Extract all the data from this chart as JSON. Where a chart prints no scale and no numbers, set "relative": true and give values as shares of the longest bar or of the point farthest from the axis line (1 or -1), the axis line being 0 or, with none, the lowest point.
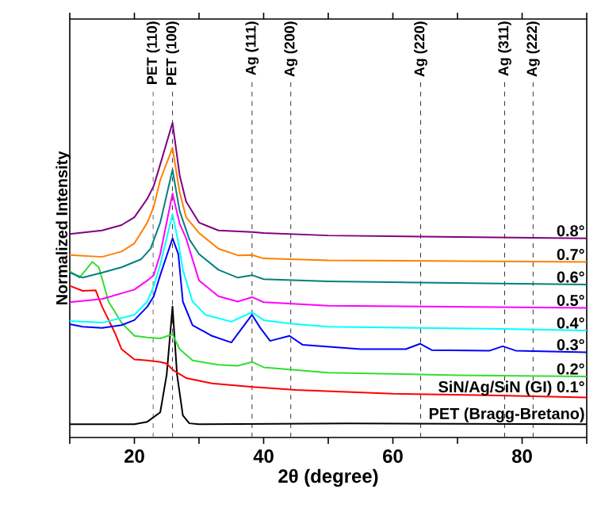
{
  "chart_data": {
    "type": "line",
    "relative": true,
    "xlabel": "2θ (degree)",
    "ylabel": "Normalized Intensity",
    "xlim": [
      10,
      90
    ],
    "xticks": [
      {
        "value": 10,
        "label": null
      },
      20,
      {
        "value": 30,
        "label": null
      },
      40,
      {
        "value": 50,
        "label": null
      },
      60,
      {
        "value": 70,
        "label": null
      },
      80,
      {
        "value": 90,
        "label": null
      }
    ],
    "series": [
      {
        "name": "PET (Bragg-Bretano)",
        "color": "#000000",
        "x": [
          10,
          20,
          22,
          23,
          24,
          25,
          25.9,
          26.6,
          27.5,
          28.5,
          30,
          53,
          90
        ],
        "values": [
          0.042,
          0.042,
          0.05,
          0.065,
          0.08,
          0.2,
          0.416,
          0.2,
          0.07,
          0.045,
          0.042,
          0.045,
          0.042
        ]
      },
      {
        "name": "SiN/Ag/SiN (GI) 0.1°",
        "color": "#ff0000",
        "x": [
          10,
          12,
          14,
          15,
          17,
          18,
          20,
          22,
          24,
          25,
          26,
          28,
          32,
          38,
          45,
          60,
          75,
          90
        ],
        "values": [
          0.482,
          0.466,
          0.468,
          0.416,
          0.332,
          0.281,
          0.248,
          0.245,
          0.24,
          0.235,
          0.214,
          0.189,
          0.172,
          0.161,
          0.151,
          0.139,
          0.134,
          0.127
        ]
      },
      {
        "name": "0.2°",
        "color": "#33dd33",
        "x": [
          10,
          11.5,
          12.5,
          13.5,
          14.5,
          16,
          18,
          20,
          22,
          24,
          25.9,
          27,
          29,
          33,
          36,
          38.2,
          40,
          50,
          70,
          90
        ],
        "values": [
          0.529,
          0.508,
          0.533,
          0.558,
          0.541,
          0.432,
          0.365,
          0.323,
          0.318,
          0.315,
          0.328,
          0.281,
          0.245,
          0.231,
          0.228,
          0.24,
          0.223,
          0.206,
          0.198,
          0.194
        ]
      },
      {
        "name": "0.3°",
        "color": "#0000ff",
        "x": [
          10,
          12,
          15,
          18,
          20,
          22,
          23,
          24,
          25.9,
          26.8,
          27.5,
          29,
          32,
          35,
          38.2,
          39.5,
          41,
          44,
          46,
          55,
          62,
          64.2,
          66,
          75,
          77,
          79,
          90
        ],
        "values": [
          0.36,
          0.352,
          0.348,
          0.357,
          0.373,
          0.416,
          0.449,
          0.516,
          0.633,
          0.583,
          0.432,
          0.357,
          0.323,
          0.302,
          0.39,
          0.348,
          0.307,
          0.323,
          0.295,
          0.281,
          0.281,
          0.298,
          0.278,
          0.276,
          0.29,
          0.276,
          0.271
        ]
      },
      {
        "name": "0.4°",
        "color": "#00ffff",
        "x": [
          10,
          15,
          20,
          22,
          23,
          24,
          25.9,
          26.8,
          27.5,
          29,
          31,
          35,
          38.2,
          40,
          44,
          50,
          77,
          90
        ],
        "values": [
          0.37,
          0.365,
          0.39,
          0.432,
          0.482,
          0.549,
          0.71,
          0.62,
          0.533,
          0.432,
          0.39,
          0.368,
          0.398,
          0.373,
          0.362,
          0.352,
          0.345,
          0.34
        ]
      },
      {
        "name": "0.5°",
        "color": "#ff00ff",
        "x": [
          10,
          15,
          20,
          22,
          23,
          24,
          25.9,
          27,
          28,
          30,
          33,
          36,
          38.2,
          40,
          50,
          90
        ],
        "values": [
          0.43,
          0.44,
          0.47,
          0.499,
          0.516,
          0.583,
          0.775,
          0.68,
          0.633,
          0.499,
          0.449,
          0.432,
          0.446,
          0.43,
          0.419,
          0.412
        ]
      },
      {
        "name": "0.6°",
        "color": "#008080",
        "x": [
          10,
          12,
          15,
          18,
          21,
          22.5,
          24,
          25.9,
          27,
          28.5,
          30,
          33,
          36,
          38.2,
          40,
          50,
          90
        ],
        "values": [
          0.524,
          0.508,
          0.524,
          0.541,
          0.566,
          0.6,
          0.683,
          0.851,
          0.72,
          0.63,
          0.583,
          0.533,
          0.508,
          0.516,
          0.503,
          0.496,
          0.486
        ]
      },
      {
        "name": "0.7°",
        "color": "#ff8000",
        "x": [
          10,
          15,
          18,
          20,
          22,
          23,
          24,
          25.9,
          27,
          28,
          30,
          33,
          36,
          38.2,
          40,
          50,
          90
        ],
        "values": [
          0.58,
          0.574,
          0.591,
          0.617,
          0.683,
          0.734,
          0.818,
          0.921,
          0.78,
          0.7,
          0.65,
          0.6,
          0.579,
          0.58,
          0.569,
          0.563,
          0.558
        ]
      },
      {
        "name": "0.8°",
        "color": "#800080",
        "x": [
          10,
          15,
          18,
          20,
          22,
          23,
          24,
          25.9,
          27,
          28,
          30,
          33,
          38.2,
          40,
          50,
          90
        ],
        "values": [
          0.647,
          0.658,
          0.675,
          0.7,
          0.759,
          0.8,
          0.868,
          1.0,
          0.834,
          0.75,
          0.683,
          0.658,
          0.653,
          0.65,
          0.642,
          0.633
        ]
      }
    ],
    "ref_lines": [
      {
        "axis": "x",
        "value": 22.9,
        "label": "PET (110)",
        "color": "#666666",
        "line_style": "dashed"
      },
      {
        "axis": "x",
        "value": 25.9,
        "label": "PET (100)",
        "color": "#333333",
        "line_style": "dashed"
      },
      {
        "axis": "x",
        "value": 38.2,
        "label": "Ag (111)",
        "color": "#333333",
        "line_style": "dashed"
      },
      {
        "axis": "x",
        "value": 44.2,
        "label": "Ag (200)",
        "color": "#333333",
        "line_style": "dashed"
      },
      {
        "axis": "x",
        "value": 64.3,
        "label": "Ag (220)",
        "color": "#333333",
        "line_style": "dashed"
      },
      {
        "axis": "x",
        "value": 77.3,
        "label": "Ag (311)",
        "color": "#333333",
        "line_style": "dashed"
      },
      {
        "axis": "x",
        "value": 81.7,
        "label": "Ag (222)",
        "color": "#333333",
        "line_style": "dashed"
      }
    ]
  }
}
